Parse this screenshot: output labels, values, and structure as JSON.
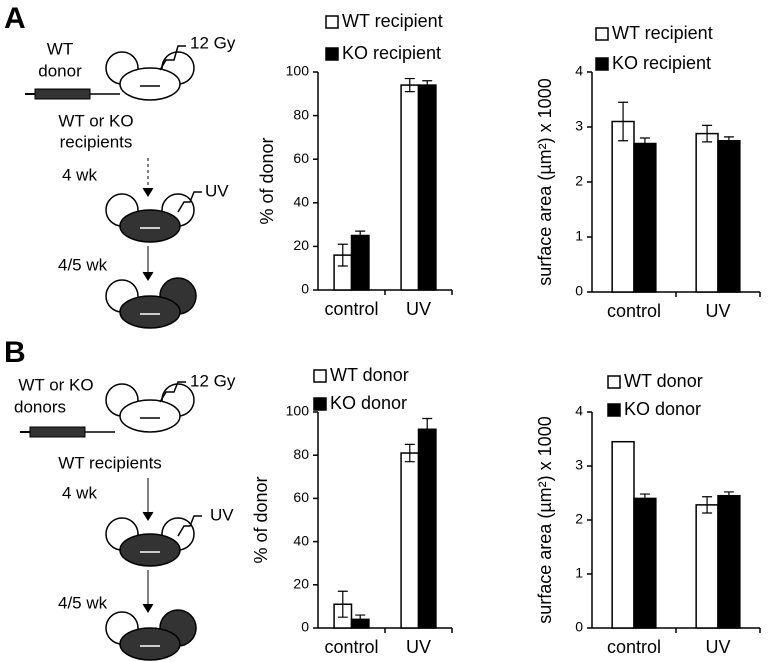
{
  "panel_labels": [
    "A",
    "B"
  ],
  "diagrams": [
    {
      "donor": [
        "WT",
        "donor"
      ],
      "dose": "12 Gy",
      "recipients": [
        "WT or KO",
        "recipients"
      ],
      "wait1": "4 wk",
      "uv": "UV",
      "wait2": "4/5 wk"
    },
    {
      "donor": [
        "WT or KO",
        "donors"
      ],
      "dose": "12 Gy",
      "recipients": [
        "WT recipients"
      ],
      "wait1": "4 wk",
      "uv": "UV",
      "wait2": "4/5 wk"
    }
  ],
  "chart_data": [
    {
      "type": "bar",
      "ylabel": "% of donor",
      "categories": [
        "control",
        "UV"
      ],
      "series": [
        {
          "name": "WT recipient",
          "color": "#ffffff",
          "values": [
            16,
            94
          ],
          "errors": [
            5,
            3
          ]
        },
        {
          "name": "KO recipient",
          "color": "#000000",
          "values": [
            25,
            94
          ],
          "errors": [
            2,
            2
          ]
        }
      ],
      "ylim": [
        0,
        100
      ],
      "yticks": [
        0,
        20,
        40,
        60,
        80,
        100
      ]
    },
    {
      "type": "bar",
      "ylabel": "surface area (µm²) x 1000",
      "categories": [
        "control",
        "UV"
      ],
      "series": [
        {
          "name": "WT recipient",
          "color": "#ffffff",
          "values": [
            3.1,
            2.88
          ],
          "errors": [
            0.35,
            0.15
          ]
        },
        {
          "name": "KO recipient",
          "color": "#000000",
          "values": [
            2.7,
            2.75
          ],
          "errors": [
            0.1,
            0.07
          ]
        }
      ],
      "ylim": [
        0,
        4
      ],
      "yticks": [
        0,
        1,
        2,
        3,
        4
      ]
    },
    {
      "type": "bar",
      "ylabel": "% of donor",
      "categories": [
        "control",
        "UV"
      ],
      "series": [
        {
          "name": "WT donor",
          "color": "#ffffff",
          "values": [
            11,
            81
          ],
          "errors": [
            6,
            4
          ]
        },
        {
          "name": "KO donor",
          "color": "#000000",
          "values": [
            4,
            92
          ],
          "errors": [
            2,
            5
          ]
        }
      ],
      "ylim": [
        0,
        100
      ],
      "yticks": [
        0,
        20,
        40,
        60,
        80,
        100
      ]
    },
    {
      "type": "bar",
      "ylabel": "surface area (µm²) x 1000",
      "categories": [
        "control",
        "UV"
      ],
      "series": [
        {
          "name": "WT donor",
          "color": "#ffffff",
          "values": [
            3.45,
            2.28
          ],
          "errors": [
            null,
            0.15
          ]
        },
        {
          "name": "KO donor",
          "color": "#000000",
          "values": [
            2.4,
            2.45
          ],
          "errors": [
            0.08,
            0.07
          ]
        }
      ],
      "ylim": [
        0,
        4
      ],
      "yticks": [
        0,
        1,
        2,
        3,
        4
      ]
    }
  ]
}
